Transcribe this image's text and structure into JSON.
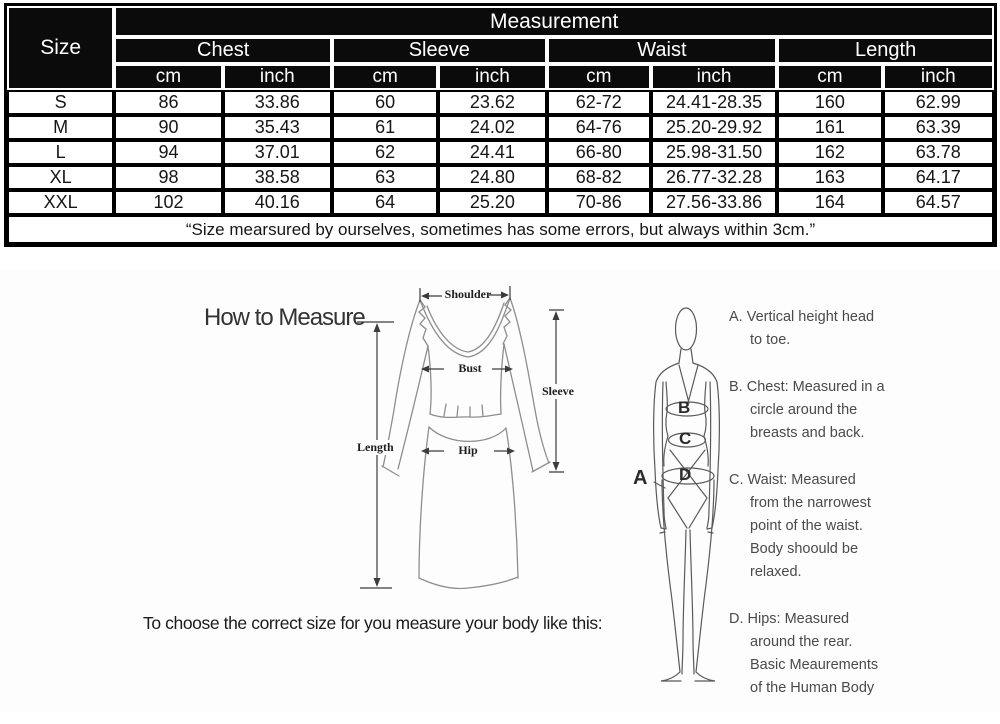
{
  "table": {
    "title": "Measurement",
    "size_label": "Size",
    "groups": [
      "Chest",
      "Sleeve",
      "Waist",
      "Length"
    ],
    "units": {
      "cm": "cm",
      "inch": "inch"
    },
    "rows": [
      [
        "S",
        "86",
        "33.86",
        "60",
        "23.62",
        "62-72",
        "24.41-28.35",
        "160",
        "62.99"
      ],
      [
        "M",
        "90",
        "35.43",
        "61",
        "24.02",
        "64-76",
        "25.20-29.92",
        "161",
        "63.39"
      ],
      [
        "L",
        "94",
        "37.01",
        "62",
        "24.41",
        "66-80",
        "25.98-31.50",
        "162",
        "63.78"
      ],
      [
        "XL",
        "98",
        "38.58",
        "63",
        "24.80",
        "68-82",
        "26.77-32.28",
        "163",
        "64.17"
      ],
      [
        "XXL",
        "102",
        "40.16",
        "64",
        "25.20",
        "70-86",
        "27.56-33.86",
        "164",
        "64.57"
      ]
    ],
    "note": "“Size mearsured by ourselves, sometimes has some errors, but always within 3cm.”"
  },
  "guide": {
    "heading": "How to Measure",
    "caption": "To choose the correct size for you measure your body like this:",
    "dress_labels": {
      "shoulder": "Shoulder",
      "bust": "Bust",
      "sleeve": "Sleeve",
      "length": "Length",
      "hip": "Hip"
    },
    "figure_markers": {
      "a": "A",
      "b": "B",
      "c": "C",
      "d": "D"
    },
    "notes": [
      {
        "lines": [
          "A. Vertical height head",
          "to toe."
        ]
      },
      {
        "lines": [
          "B. Chest: Measured in a",
          "circle around the",
          "breasts and back."
        ]
      },
      {
        "lines": [
          "C. Waist: Measured",
          "from the narrowest",
          "point of the waist.",
          "Body shoould be",
          "relaxed."
        ]
      },
      {
        "lines": [
          "D. Hips: Measured",
          "around the rear.",
          "Basic Meaurements",
          "of the Human Body"
        ]
      }
    ]
  },
  "colors": {
    "header_bg": "#0b0b0b",
    "header_text": "#ffffff",
    "cell_border": "#000000",
    "garment_line": "#8e8e8e",
    "figure_line": "#5a5a5a",
    "arrow_line": "#3c3c3c"
  }
}
